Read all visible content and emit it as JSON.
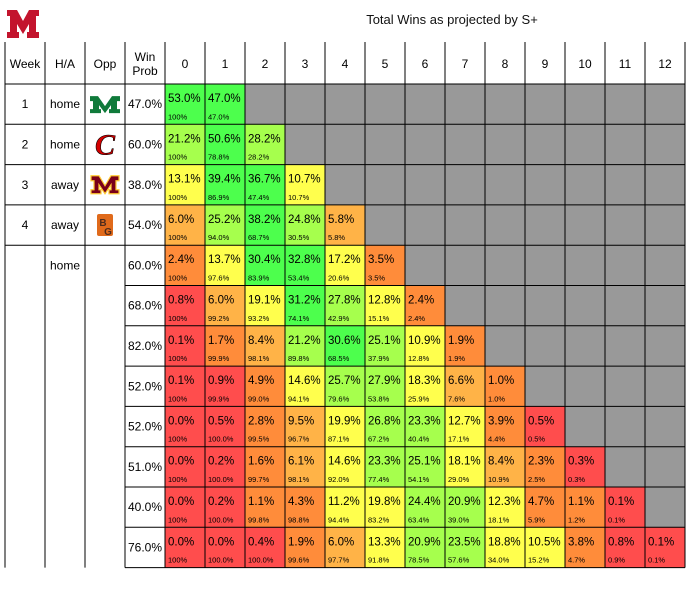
{
  "chart_data": {
    "type": "table",
    "title": "Total Wins as projected by S+",
    "headers": {
      "week": "Week",
      "ha": "H/A",
      "opp": "Opp",
      "winprob": "Win Prob",
      "wins": [
        "0",
        "1",
        "2",
        "3",
        "4",
        "5",
        "6",
        "7",
        "8",
        "9",
        "10",
        "11",
        "12"
      ]
    },
    "rows": [
      {
        "week": "1",
        "ha": "home",
        "opp": "marshall-logo",
        "wp": "47.0%",
        "cells": [
          [
            "53.0%",
            "100%"
          ],
          [
            "47.0%",
            "47.0%"
          ]
        ]
      },
      {
        "week": "2",
        "ha": "home",
        "opp": "cincinnati-logo",
        "wp": "60.0%",
        "cells": [
          [
            "21.2%",
            "100%"
          ],
          [
            "50.6%",
            "78.8%"
          ],
          [
            "28.2%",
            "28.2%"
          ]
        ]
      },
      {
        "week": "3",
        "ha": "away",
        "opp": "minnesota-logo",
        "wp": "38.0%",
        "cells": [
          [
            "13.1%",
            "100%"
          ],
          [
            "39.4%",
            "86.9%"
          ],
          [
            "36.7%",
            "47.4%"
          ],
          [
            "10.7%",
            "10.7%"
          ]
        ]
      },
      {
        "week": "4",
        "ha": "away",
        "opp": "bowling-green-logo",
        "wp": "54.0%",
        "cells": [
          [
            "6.0%",
            "100%"
          ],
          [
            "25.2%",
            "94.0%"
          ],
          [
            "38.2%",
            "68.7%"
          ],
          [
            "24.8%",
            "30.5%"
          ],
          [
            "5.8%",
            "5.8%"
          ]
        ]
      },
      {
        "week": "",
        "ha": "home",
        "opp": "",
        "wp": "60.0%",
        "cells": [
          [
            "2.4%",
            "100%"
          ],
          [
            "13.7%",
            "97.6%"
          ],
          [
            "30.4%",
            "83.9%"
          ],
          [
            "32.8%",
            "53.4%"
          ],
          [
            "17.2%",
            "20.6%"
          ],
          [
            "3.5%",
            "3.5%"
          ]
        ]
      },
      {
        "week": "",
        "ha": "",
        "opp": "",
        "wp": "68.0%",
        "cells": [
          [
            "0.8%",
            "100%"
          ],
          [
            "6.0%",
            "99.2%"
          ],
          [
            "19.1%",
            "93.2%"
          ],
          [
            "31.2%",
            "74.1%"
          ],
          [
            "27.8%",
            "42.9%"
          ],
          [
            "12.8%",
            "15.1%"
          ],
          [
            "2.4%",
            "2.4%"
          ]
        ]
      },
      {
        "week": "",
        "ha": "",
        "opp": "",
        "wp": "82.0%",
        "cells": [
          [
            "0.1%",
            "100%"
          ],
          [
            "1.7%",
            "99.9%"
          ],
          [
            "8.4%",
            "98.1%"
          ],
          [
            "21.2%",
            "89.8%"
          ],
          [
            "30.6%",
            "68.5%"
          ],
          [
            "25.1%",
            "37.9%"
          ],
          [
            "10.9%",
            "12.8%"
          ],
          [
            "1.9%",
            "1.9%"
          ]
        ]
      },
      {
        "week": "",
        "ha": "",
        "opp": "",
        "wp": "52.0%",
        "cells": [
          [
            "0.1%",
            "100%"
          ],
          [
            "0.9%",
            "99.9%"
          ],
          [
            "4.9%",
            "99.0%"
          ],
          [
            "14.6%",
            "94.1%"
          ],
          [
            "25.7%",
            "79.6%"
          ],
          [
            "27.9%",
            "53.8%"
          ],
          [
            "18.3%",
            "25.9%"
          ],
          [
            "6.6%",
            "7.6%"
          ],
          [
            "1.0%",
            "1.0%"
          ]
        ]
      },
      {
        "week": "",
        "ha": "",
        "opp": "",
        "wp": "52.0%",
        "cells": [
          [
            "0.0%",
            "100%"
          ],
          [
            "0.5%",
            "100.0%"
          ],
          [
            "2.8%",
            "99.5%"
          ],
          [
            "9.5%",
            "96.7%"
          ],
          [
            "19.9%",
            "87.1%"
          ],
          [
            "26.8%",
            "67.2%"
          ],
          [
            "23.3%",
            "40.4%"
          ],
          [
            "12.7%",
            "17.1%"
          ],
          [
            "3.9%",
            "4.4%"
          ],
          [
            "0.5%",
            "0.5%"
          ]
        ]
      },
      {
        "week": "",
        "ha": "",
        "opp": "",
        "wp": "51.0%",
        "cells": [
          [
            "0.0%",
            "100%"
          ],
          [
            "0.2%",
            "100.0%"
          ],
          [
            "1.6%",
            "99.7%"
          ],
          [
            "6.1%",
            "98.1%"
          ],
          [
            "14.6%",
            "92.0%"
          ],
          [
            "23.3%",
            "77.4%"
          ],
          [
            "25.1%",
            "54.1%"
          ],
          [
            "18.1%",
            "29.0%"
          ],
          [
            "8.4%",
            "10.9%"
          ],
          [
            "2.3%",
            "2.5%"
          ],
          [
            "0.3%",
            "0.3%"
          ]
        ]
      },
      {
        "week": "",
        "ha": "",
        "opp": "",
        "wp": "40.0%",
        "cells": [
          [
            "0.0%",
            "100%"
          ],
          [
            "0.2%",
            "100.0%"
          ],
          [
            "1.1%",
            "99.8%"
          ],
          [
            "4.3%",
            "98.8%"
          ],
          [
            "11.2%",
            "94.4%"
          ],
          [
            "19.8%",
            "83.2%"
          ],
          [
            "24.4%",
            "63.4%"
          ],
          [
            "20.9%",
            "39.0%"
          ],
          [
            "12.3%",
            "18.1%"
          ],
          [
            "4.7%",
            "5.9%"
          ],
          [
            "1.1%",
            "1.2%"
          ],
          [
            "0.1%",
            "0.1%"
          ]
        ]
      },
      {
        "week": "",
        "ha": "",
        "opp": "",
        "wp": "76.0%",
        "cells": [
          [
            "0.0%",
            "100%"
          ],
          [
            "0.0%",
            "100.0%"
          ],
          [
            "0.4%",
            "100.0%"
          ],
          [
            "1.9%",
            "99.6%"
          ],
          [
            "6.0%",
            "97.7%"
          ],
          [
            "13.3%",
            "91.8%"
          ],
          [
            "20.9%",
            "78.5%"
          ],
          [
            "23.5%",
            "57.6%"
          ],
          [
            "18.8%",
            "34.0%"
          ],
          [
            "10.5%",
            "15.2%"
          ],
          [
            "3.8%",
            "4.7%"
          ],
          [
            "0.8%",
            "0.9%"
          ],
          [
            "0.1%",
            "0.1%"
          ]
        ]
      }
    ]
  },
  "colors": {
    "scale": [
      "#ff4d4d",
      "#ff8c3a",
      "#ffb347",
      "#ffff4d",
      "#a6ff4d",
      "#4dff4d"
    ],
    "empty": "#999999",
    "grid": "#000000",
    "logo": "#c3142d",
    "marshall": "#0f7a3a",
    "cincinnati": "#d40000",
    "minnesota": "#7a0019",
    "minnesota_gold": "#ffcc33",
    "bgsu_orange": "#e06a1b",
    "bgsu_brown": "#4f2c1d"
  }
}
